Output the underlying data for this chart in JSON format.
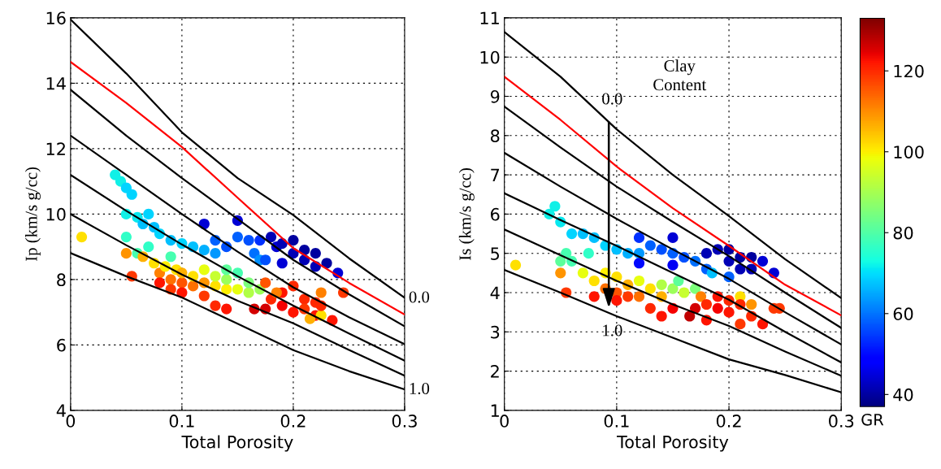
{
  "chart_data": [
    {
      "type": "scatter",
      "xlabel": "Total Porosity",
      "ylabel": "Ip (km/s g/cc)",
      "xlim": [
        0,
        0.3
      ],
      "ylim": [
        4,
        16
      ],
      "xticks": [
        0,
        0.1,
        0.2,
        {
          "value": 0.3,
          "label": "0.3"
        }
      ],
      "yticks": [
        4,
        6,
        8,
        10,
        12,
        14,
        16
      ],
      "grid": true,
      "annotations": [
        "0.0",
        "1.0"
      ],
      "series": [
        {
          "marker": "circle",
          "x": [
            0.04,
            0.045,
            0.05,
            0.055,
            0.05,
            0.06,
            0.065,
            0.07,
            0.075,
            0.08,
            0.09,
            0.1,
            0.11,
            0.12,
            0.13,
            0.05,
            0.06,
            0.07,
            0.09,
            0.12,
            0.15,
            0.13,
            0.14,
            0.15,
            0.16,
            0.165,
            0.17,
            0.17,
            0.18,
            0.185,
            0.19,
            0.2,
            0.2,
            0.21,
            0.21,
            0.22,
            0.22,
            0.23,
            0.24,
            0.175,
            0.19,
            0.01,
            0.05,
            0.055,
            0.065,
            0.075,
            0.08,
            0.085,
            0.09,
            0.095,
            0.1,
            0.1,
            0.11,
            0.11,
            0.12,
            0.12,
            0.13,
            0.13,
            0.14,
            0.14,
            0.15,
            0.16,
            0.16,
            0.17,
            0.14,
            0.15,
            0.08,
            0.09,
            0.1,
            0.12,
            0.13,
            0.14,
            0.165,
            0.175,
            0.18,
            0.19,
            0.19,
            0.2,
            0.2,
            0.21,
            0.21,
            0.22,
            0.22,
            0.215,
            0.225,
            0.225,
            0.245,
            0.235,
            0.225,
            0.175,
            0.185
          ],
          "values": [
            11.2,
            11.0,
            10.8,
            10.6,
            10.0,
            9.9,
            9.7,
            10.0,
            9.6,
            9.4,
            9.2,
            9.1,
            9.0,
            8.9,
            8.8,
            9.3,
            8.8,
            9.0,
            8.7,
            9.7,
            9.8,
            9.2,
            9.0,
            9.3,
            9.2,
            8.8,
            8.6,
            9.2,
            9.3,
            9.0,
            9.1,
            9.2,
            8.8,
            8.9,
            8.6,
            8.8,
            8.4,
            8.5,
            8.2,
            8.6,
            8.5,
            9.3,
            8.8,
            8.1,
            8.7,
            8.5,
            8.2,
            8.4,
            8.0,
            8.3,
            7.9,
            8.2,
            7.8,
            8.1,
            7.9,
            8.3,
            7.8,
            8.1,
            7.7,
            8.0,
            7.7,
            7.6,
            7.9,
            7.7,
            8.3,
            8.2,
            7.9,
            7.7,
            7.6,
            7.5,
            7.2,
            7.1,
            7.1,
            7.1,
            7.4,
            7.6,
            7.2,
            7.0,
            7.8,
            7.4,
            7.1,
            7.3,
            6.9,
            6.8,
            6.9,
            7.6,
            7.6,
            6.75,
            7.2,
            7.9,
            7.6
          ],
          "colors": [
            "#10f0e7",
            "#10f0e7",
            "#00d4ff",
            "#00d4ff",
            "#10f0e7",
            "#08e8ef",
            "#00c0ff",
            "#00d4ff",
            "#00c0ff",
            "#00d4ff",
            "#00c0ff",
            "#00d4ff",
            "#00c0ff",
            "#00b0ff",
            "#0098ff",
            "#30ffc7",
            "#46ffb0",
            "#30ffc7",
            "#46ffb0",
            "#0000d5",
            "#0000d5",
            "#0060ff",
            "#0050ff",
            "#0060ff",
            "#0050ff",
            "#0070ff",
            "#0090ff",
            "#0030ff",
            "#0000b5",
            "#0000d5",
            "#0000b5",
            "#00009f",
            "#0000b5",
            "#00009f",
            "#0000b5",
            "#00009f",
            "#0000b5",
            "#00009f",
            "#0000d5",
            "#0050ff",
            "#0000d5",
            "#ffe000",
            "#ff9400",
            "#ff3800",
            "#ffb000",
            "#ffe000",
            "#ff8000",
            "#fff000",
            "#ff7000",
            "#ffe000",
            "#ff5400",
            "#ffb000",
            "#ff7000",
            "#ffe000",
            "#ff9400",
            "#e7ff10",
            "#ffe000",
            "#c7ff30",
            "#fff000",
            "#9cff5a",
            "#e7ff10",
            "#b0ff46",
            "#7cff7a",
            "#9cff5a",
            "#5cff9a",
            "#46ffb0",
            "#ff1400",
            "#ff3800",
            "#ff1400",
            "#ff3800",
            "#ff2800",
            "#ff1400",
            "#d40000",
            "#d40000",
            "#ff2800",
            "#ff1400",
            "#f60000",
            "#ff1400",
            "#ff2800",
            "#ff2800",
            "#ff3800",
            "#ff2800",
            "#ff1400",
            "#ffb000",
            "#ffe000",
            "#ff8000",
            "#ff3800",
            "#ff1400",
            "#ff2800",
            "#ff5400",
            "#ff8000"
          ]
        },
        {
          "type": "line",
          "color": "#000000",
          "x": [
            0,
            0.05,
            0.1,
            0.15,
            0.2,
            0.25,
            0.3
          ],
          "values": [
            15.95,
            14.3,
            12.5,
            11.1,
            9.97,
            8.65,
            7.44
          ]
        },
        {
          "type": "line",
          "color": "#ff0000",
          "x": [
            0,
            0.05,
            0.1,
            0.15,
            0.2,
            0.25,
            0.3
          ],
          "values": [
            14.65,
            13.4,
            12.05,
            10.5,
            8.96,
            7.9,
            6.93
          ]
        },
        {
          "type": "line",
          "color": "#000000",
          "x": [
            0,
            0.05,
            0.1,
            0.15,
            0.2,
            0.25,
            0.3
          ],
          "values": [
            13.8,
            12.4,
            11.1,
            9.85,
            8.6,
            7.55,
            6.57
          ]
        },
        {
          "type": "line",
          "color": "#000000",
          "x": [
            0,
            0.05,
            0.1,
            0.15,
            0.2,
            0.25,
            0.3
          ],
          "values": [
            12.4,
            11.2,
            10.0,
            8.85,
            7.76,
            6.85,
            6.02
          ]
        },
        {
          "type": "line",
          "color": "#000000",
          "x": [
            0,
            0.05,
            0.1,
            0.15,
            0.2,
            0.25,
            0.3
          ],
          "values": [
            11.2,
            10.1,
            9.07,
            8.1,
            7.2,
            6.35,
            5.52
          ]
        },
        {
          "type": "line",
          "color": "#000000",
          "x": [
            0,
            0.05,
            0.1,
            0.15,
            0.2,
            0.25,
            0.3
          ],
          "values": [
            10.0,
            9.05,
            8.15,
            7.35,
            6.66,
            5.85,
            5.06
          ]
        },
        {
          "type": "line",
          "color": "#000000",
          "x": [
            0,
            0.05,
            0.1,
            0.15,
            0.2,
            0.25,
            0.3
          ],
          "values": [
            8.81,
            8.1,
            7.45,
            6.65,
            5.84,
            5.2,
            4.64
          ]
        }
      ]
    },
    {
      "type": "scatter",
      "xlabel": "Total Porosity",
      "ylabel": "Is (km/s g/cc)",
      "xlim": [
        0,
        0.3
      ],
      "ylim": [
        1,
        11
      ],
      "xticks": [
        0,
        0.1,
        0.2,
        {
          "value": 0.3,
          "label": "0.3"
        }
      ],
      "yticks": [
        1,
        2,
        3,
        4,
        5,
        6,
        7,
        8,
        9,
        10,
        11
      ],
      "grid": true,
      "clim": [
        37,
        133
      ],
      "cticks": [
        40,
        60,
        80,
        100,
        120
      ],
      "clabel": "GR",
      "annotations": [
        "0.0",
        "1.0",
        "Clay\nContent"
      ],
      "series": [
        {
          "marker": "circle",
          "x": [
            0.045,
            0.04,
            0.05,
            0.06,
            0.07,
            0.08,
            0.09,
            0.1,
            0.11,
            0.12,
            0.055,
            0.06,
            0.075,
            0.05,
            0.12,
            0.15,
            0.13,
            0.14,
            0.15,
            0.16,
            0.17,
            0.12,
            0.15,
            0.18,
            0.19,
            0.2,
            0.2,
            0.21,
            0.21,
            0.22,
            0.22,
            0.23,
            0.24,
            0.185,
            0.2,
            0.18,
            0.01,
            0.05,
            0.055,
            0.07,
            0.08,
            0.09,
            0.09,
            0.1,
            0.1,
            0.11,
            0.12,
            0.12,
            0.13,
            0.14,
            0.14,
            0.15,
            0.16,
            0.17,
            0.155,
            0.175,
            0.21,
            0.22,
            0.08,
            0.1,
            0.11,
            0.13,
            0.14,
            0.15,
            0.165,
            0.17,
            0.18,
            0.18,
            0.19,
            0.2,
            0.2,
            0.21,
            0.21,
            0.22,
            0.23,
            0.24,
            0.245,
            0.19
          ],
          "values": [
            6.2,
            6.0,
            5.8,
            5.5,
            5.5,
            5.4,
            5.2,
            5.1,
            5.0,
            5.0,
            5.0,
            4.8,
            5.0,
            4.8,
            5.4,
            5.4,
            5.2,
            5.1,
            5.0,
            4.9,
            4.8,
            4.75,
            4.7,
            4.6,
            5.1,
            5.1,
            4.8,
            4.9,
            4.6,
            4.9,
            4.6,
            4.8,
            4.5,
            4.5,
            4.4,
            5.0,
            4.7,
            4.5,
            4.0,
            4.5,
            4.3,
            4.5,
            4.1,
            4.4,
            4.0,
            4.2,
            4.3,
            3.9,
            4.1,
            4.2,
            3.9,
            4.1,
            4.0,
            4.1,
            4.3,
            3.9,
            3.9,
            3.7,
            3.9,
            3.8,
            3.9,
            3.6,
            3.4,
            3.6,
            3.4,
            3.6,
            3.7,
            3.3,
            3.6,
            3.8,
            3.5,
            3.7,
            3.2,
            3.4,
            3.2,
            3.6,
            3.6,
            3.9
          ],
          "colors": [
            "#10f0e7",
            "#10f0e7",
            "#08e8ef",
            "#00d4ff",
            "#00c0ff",
            "#00c0ff",
            "#00d4ff",
            "#00c0ff",
            "#00b0ff",
            "#0098ff",
            "#46ffb0",
            "#46ffb0",
            "#30ffc7",
            "#5cff9a",
            "#0030ff",
            "#0000d5",
            "#0060ff",
            "#0050ff",
            "#0060ff",
            "#0050ff",
            "#0070ff",
            "#0008ff",
            "#0000f5",
            "#0060ff",
            "#0000b5",
            "#00009f",
            "#0000b5",
            "#00009f",
            "#0000b5",
            "#00009f",
            "#0000b5",
            "#0000d5",
            "#0000d5",
            "#00c0ff",
            "#0060ff",
            "#0000b5",
            "#ffe000",
            "#ff9400",
            "#ff3800",
            "#e7ff10",
            "#ffe000",
            "#fff000",
            "#ff7000",
            "#ffe000",
            "#ff5400",
            "#ffb000",
            "#e7ff10",
            "#ff7000",
            "#ffe000",
            "#b0ff46",
            "#ffb000",
            "#9cff5a",
            "#c7ff30",
            "#7cff7a",
            "#5cff9a",
            "#ff8000",
            "#ffe000",
            "#ff9400",
            "#ff1400",
            "#ff1400",
            "#ff3800",
            "#ff2800",
            "#ff1400",
            "#f60000",
            "#c00000",
            "#d40000",
            "#ff2800",
            "#ff1400",
            "#f60000",
            "#ff2800",
            "#ff1400",
            "#ff2800",
            "#ff3800",
            "#ff2800",
            "#ff1400",
            "#ff3800",
            "#ff3800",
            "#ff1400"
          ]
        },
        {
          "type": "line",
          "color": "#000000",
          "x": [
            0,
            0.05,
            0.1,
            0.15,
            0.2,
            0.25,
            0.3
          ],
          "values": [
            10.64,
            9.5,
            8.16,
            7.0,
            5.95,
            4.85,
            3.86
          ]
        },
        {
          "type": "line",
          "color": "#ff0000",
          "x": [
            0,
            0.05,
            0.1,
            0.15,
            0.2,
            0.25,
            0.3
          ],
          "values": [
            9.5,
            8.4,
            7.21,
            6.15,
            5.19,
            4.2,
            3.42
          ]
        },
        {
          "type": "line",
          "color": "#000000",
          "x": [
            0,
            0.05,
            0.1,
            0.15,
            0.2,
            0.25,
            0.3
          ],
          "values": [
            8.74,
            7.7,
            6.7,
            5.8,
            4.93,
            4.0,
            3.1
          ]
        },
        {
          "type": "line",
          "color": "#000000",
          "x": [
            0,
            0.05,
            0.1,
            0.15,
            0.2,
            0.25,
            0.3
          ],
          "values": [
            7.56,
            6.7,
            5.88,
            5.1,
            4.35,
            3.5,
            2.68
          ]
        },
        {
          "type": "line",
          "color": "#000000",
          "x": [
            0,
            0.05,
            0.1,
            0.15,
            0.2,
            0.25,
            0.3
          ],
          "values": [
            6.53,
            5.85,
            5.19,
            4.5,
            3.82,
            3.0,
            2.22
          ]
        },
        {
          "type": "line",
          "color": "#000000",
          "x": [
            0,
            0.05,
            0.1,
            0.15,
            0.2,
            0.25,
            0.3
          ],
          "values": [
            5.61,
            4.95,
            4.3,
            3.7,
            3.15,
            2.5,
            1.88
          ]
        },
        {
          "type": "line",
          "color": "#000000",
          "x": [
            0,
            0.05,
            0.1,
            0.15,
            0.2,
            0.25,
            0.3
          ],
          "values": [
            4.58,
            4.0,
            3.4,
            2.85,
            2.3,
            1.9,
            1.46
          ]
        }
      ]
    }
  ]
}
